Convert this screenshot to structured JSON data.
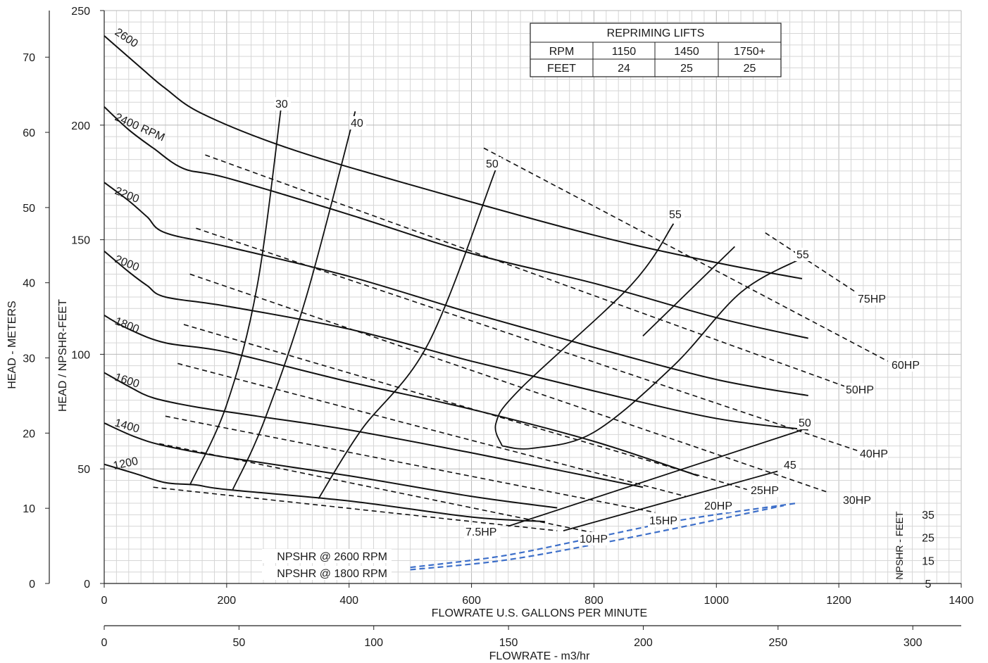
{
  "chart_data": {
    "type": "line",
    "xlabel": "FLOWRATE U.S. GALLONS PER MINUTE",
    "x2label": "FLOWRATE - m3/hr",
    "ylabel_left_outer": "HEAD - METERS",
    "ylabel_left_inner": "HEAD / NPSHR-FEET",
    "ylabel_right": "NPSHR - FEET",
    "xlim": [
      0,
      1400
    ],
    "ylim": [
      0,
      250
    ],
    "x_ticks": [
      0,
      200,
      400,
      600,
      800,
      1000,
      1200,
      1400
    ],
    "x2_ticks": [
      0,
      50,
      100,
      150,
      200,
      250,
      300
    ],
    "y_ticks": [
      0,
      50,
      100,
      150,
      200,
      250
    ],
    "y_meter_ticks": [
      0,
      10,
      20,
      30,
      40,
      50,
      60,
      70
    ],
    "y_npshr_ticks": [
      5,
      15,
      25,
      35
    ],
    "grid": true,
    "speed_curves": [
      {
        "label": "2600",
        "points": [
          [
            0,
            239
          ],
          [
            60,
            225
          ],
          [
            100,
            216
          ],
          [
            160,
            205
          ],
          [
            300,
            190
          ],
          [
            500,
            174
          ],
          [
            800,
            152
          ],
          [
            1000,
            140
          ],
          [
            1140,
            133
          ]
        ]
      },
      {
        "label": "2400 RPM",
        "points": [
          [
            0,
            208
          ],
          [
            40,
            198
          ],
          [
            80,
            190
          ],
          [
            130,
            181
          ],
          [
            200,
            177
          ],
          [
            400,
            161
          ],
          [
            600,
            144
          ],
          [
            800,
            131
          ],
          [
            1000,
            116
          ],
          [
            1150,
            107
          ]
        ]
      },
      {
        "label": "2200",
        "points": [
          [
            0,
            175
          ],
          [
            40,
            167
          ],
          [
            70,
            160
          ],
          [
            100,
            153
          ],
          [
            200,
            147
          ],
          [
            400,
            134
          ],
          [
            600,
            118
          ],
          [
            800,
            103
          ],
          [
            1000,
            89
          ],
          [
            1150,
            82
          ]
        ]
      },
      {
        "label": "2000",
        "points": [
          [
            0,
            145
          ],
          [
            40,
            136
          ],
          [
            70,
            130
          ],
          [
            100,
            125
          ],
          [
            200,
            121
          ],
          [
            400,
            111
          ],
          [
            600,
            97
          ],
          [
            800,
            84
          ],
          [
            1000,
            72
          ],
          [
            1150,
            67
          ]
        ]
      },
      {
        "label": "1800",
        "points": [
          [
            0,
            117
          ],
          [
            40,
            111
          ],
          [
            100,
            105
          ],
          [
            200,
            101
          ],
          [
            400,
            88
          ],
          [
            600,
            76
          ],
          [
            800,
            62
          ],
          [
            970,
            47
          ]
        ]
      },
      {
        "label": "1600",
        "points": [
          [
            0,
            92
          ],
          [
            40,
            86
          ],
          [
            80,
            81
          ],
          [
            150,
            77
          ],
          [
            250,
            73
          ],
          [
            400,
            67
          ],
          [
            600,
            57
          ],
          [
            750,
            49
          ],
          [
            880,
            42
          ]
        ]
      },
      {
        "label": "1400",
        "points": [
          [
            0,
            70
          ],
          [
            50,
            64
          ],
          [
            100,
            60
          ],
          [
            200,
            55
          ],
          [
            400,
            47
          ],
          [
            600,
            38
          ],
          [
            740,
            33
          ]
        ]
      },
      {
        "label": "1200",
        "points": [
          [
            0,
            52
          ],
          [
            50,
            48
          ],
          [
            100,
            44
          ],
          [
            150,
            43
          ],
          [
            200,
            41
          ],
          [
            400,
            36
          ],
          [
            600,
            29
          ],
          [
            720,
            27
          ]
        ]
      }
    ],
    "power_lines": [
      {
        "label": "75HP",
        "points": [
          [
            1080,
            153
          ],
          [
            1240,
            125
          ]
        ]
      },
      {
        "label": "60HP",
        "points": [
          [
            620,
            190
          ],
          [
            1280,
            97
          ]
        ]
      },
      {
        "label": "50HP",
        "points": [
          [
            165,
            187
          ],
          [
            1210,
            86
          ]
        ]
      },
      {
        "label": "40HP",
        "points": [
          [
            150,
            155
          ],
          [
            1230,
            58
          ]
        ]
      },
      {
        "label": "30HP",
        "points": [
          [
            140,
            135
          ],
          [
            1180,
            40
          ]
        ]
      },
      {
        "label": "25HP",
        "points": [
          [
            130,
            113
          ],
          [
            1050,
            41
          ]
        ]
      },
      {
        "label": "20HP",
        "points": [
          [
            120,
            96
          ],
          [
            950,
            38
          ]
        ]
      },
      {
        "label": "15HP",
        "points": [
          [
            100,
            73
          ],
          [
            900,
            31
          ]
        ]
      },
      {
        "label": "10HP",
        "points": [
          [
            90,
            61
          ],
          [
            820,
            21
          ]
        ]
      },
      {
        "label": "7.5HP",
        "points": [
          [
            80,
            42
          ],
          [
            740,
            23
          ]
        ]
      }
    ],
    "efficiency_curves": [
      {
        "label": "30",
        "points": [
          [
            140,
            43
          ],
          [
            200,
            78
          ],
          [
            250,
            130
          ],
          [
            290,
            210
          ]
        ]
      },
      {
        "label": "40",
        "points": [
          [
            210,
            41
          ],
          [
            260,
            70
          ],
          [
            330,
            125
          ],
          [
            410,
            206
          ]
        ]
      },
      {
        "label": "50",
        "points": [
          [
            350,
            37
          ],
          [
            420,
            67
          ],
          [
            530,
            105
          ],
          [
            640,
            181
          ]
        ]
      },
      {
        "label": "55",
        "points": [
          [
            650,
            60
          ],
          [
            700,
            59
          ],
          [
            800,
            66
          ],
          [
            930,
            95
          ],
          [
            1040,
            127
          ],
          [
            1140,
            142
          ]
        ]
      },
      {
        "label": "55",
        "points": [
          [
            880,
            108
          ],
          [
            1030,
            147
          ]
        ]
      },
      {
        "label": "55",
        "points": [
          [
            650,
            60
          ],
          [
            640,
            70
          ],
          [
            680,
            85
          ],
          [
            860,
            130
          ],
          [
            930,
            157
          ]
        ]
      },
      {
        "label": "50",
        "points": [
          [
            660,
            25
          ],
          [
            1140,
            67
          ]
        ]
      },
      {
        "label": "45",
        "points": [
          [
            750,
            23
          ],
          [
            1100,
            49
          ]
        ]
      }
    ],
    "npshr_curves": [
      {
        "label": "NPSHR @ 2600 RPM",
        "points": [
          [
            500,
            7
          ],
          [
            650,
            12
          ],
          [
            800,
            20
          ],
          [
            950,
            28
          ],
          [
            1130,
            35
          ]
        ]
      },
      {
        "label": "NPSHR @ 1800 RPM",
        "points": [
          [
            500,
            6
          ],
          [
            650,
            10
          ],
          [
            800,
            17
          ],
          [
            950,
            25
          ],
          [
            1110,
            34
          ]
        ]
      }
    ],
    "table": {
      "title": "REPRIMING LIFTS",
      "rows": [
        [
          "RPM",
          "1150",
          "1450",
          "1750+"
        ],
        [
          "FEET",
          "24",
          "25",
          "25"
        ]
      ]
    },
    "colors": {
      "curve": "#111111",
      "npshr": "#3d6fc9",
      "grid": "#d6d6d6"
    }
  }
}
